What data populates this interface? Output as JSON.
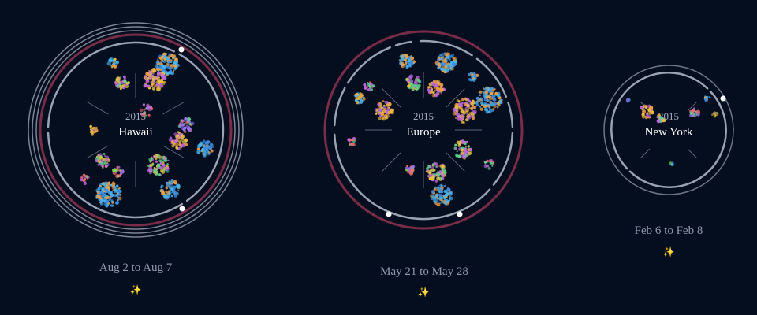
{
  "trips": [
    {
      "year": "2015",
      "place": "Hawaii",
      "date_range": "Aug 2 to Aug 7",
      "sparkle_icon": "sparkles-icon",
      "sparkle_glyph": "✨"
    },
    {
      "year": "2015",
      "place": "Europe",
      "date_range": "May 21 to May 28",
      "sparkle_icon": "sparkles-icon",
      "sparkle_glyph": "✨"
    },
    {
      "year": "2015",
      "place": "New York",
      "date_range": "Feb 6 to Feb 8",
      "sparkle_icon": "sparkles-icon",
      "sparkle_glyph": "✨"
    }
  ],
  "colors": {
    "background": "#050e1f",
    "ring": "#9aa3b3",
    "accent_ring": "#7a2d48",
    "marker": "#ffffff",
    "palette": [
      "#3a8fe8",
      "#45b7f0",
      "#f0a040",
      "#e8c040",
      "#c068e0",
      "#5cd08a",
      "#f06a70",
      "#9a70f0",
      "#88d848"
    ]
  }
}
